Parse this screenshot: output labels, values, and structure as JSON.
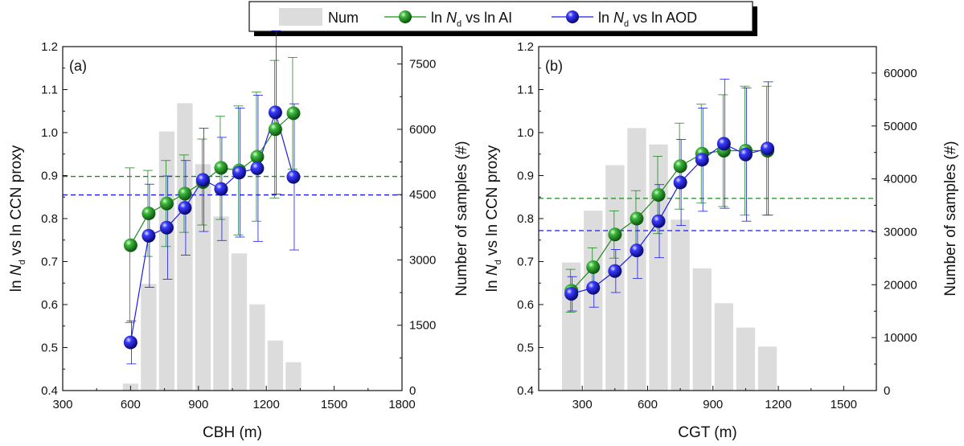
{
  "legend": {
    "items": [
      {
        "label": "Num",
        "kind": "bar"
      },
      {
        "label_main": "ln ",
        "label_italic": "N",
        "label_sub": "d",
        "label_tail": " vs ln AI",
        "color": "#1f8a1f",
        "kind": "line"
      },
      {
        "label_main": "ln ",
        "label_italic": "N",
        "label_sub": "d",
        "label_tail": " vs ln AOD",
        "color": "#1a1aee",
        "kind": "line"
      }
    ]
  },
  "colors": {
    "green": "#1f8a1f",
    "blue": "#1a1aee",
    "bars": "#dcdcdc",
    "green_dash": "#1f8a1f",
    "blue_dash": "#1a1aee"
  },
  "chart_data": [
    {
      "type": "bar+line",
      "panel_label": "(a)",
      "xlabel": "CBH (m)",
      "ylabel_left": {
        "pre": "ln ",
        "italic": "N",
        "sub": "d",
        "post": " vs ln CCN proxy"
      },
      "ylabel_right": "Number of samples (#)",
      "xlim": [
        300,
        1800
      ],
      "ylim_left": [
        0.4,
        1.2
      ],
      "ylim_right": [
        0,
        7900
      ],
      "xticks": [
        300,
        600,
        900,
        1200,
        1500,
        1800
      ],
      "yticks_left": [
        "0.4",
        "0.5",
        "0.6",
        "0.7",
        "0.8",
        "0.9",
        "1.0",
        "1.1",
        "1.2"
      ],
      "yticks_right": [
        0,
        1500,
        3000,
        4500,
        6000,
        7500
      ],
      "bars": {
        "name": "Num",
        "x": [
          600,
          680,
          760,
          840,
          920,
          1000,
          1080,
          1160,
          1240,
          1320
        ],
        "values": [
          160,
          2450,
          5950,
          6600,
          5200,
          4000,
          3150,
          1980,
          1150,
          650
        ]
      },
      "series": [
        {
          "name": "ln Nd vs ln AI",
          "color": "#1f8a1f",
          "x": [
            600,
            680,
            760,
            840,
            920,
            1000,
            1080,
            1160,
            1240,
            1320
          ],
          "y": [
            0.738,
            0.812,
            0.835,
            0.858,
            0.885,
            0.918,
            0.912,
            0.944,
            1.008,
            1.045
          ],
          "err": [
            0.18,
            0.1,
            0.1,
            0.09,
            0.1,
            0.12,
            0.15,
            0.15,
            0.16,
            0.13
          ],
          "mean": 0.898
        },
        {
          "name": "ln Nd vs ln AOD",
          "color": "#1a1aee",
          "x": [
            600,
            680,
            760,
            840,
            920,
            1000,
            1080,
            1160,
            1240,
            1320
          ],
          "y": [
            0.512,
            0.76,
            0.779,
            0.825,
            0.89,
            0.869,
            0.907,
            0.917,
            1.047,
            0.897
          ],
          "err": [
            0.05,
            0.12,
            0.12,
            0.11,
            0.12,
            0.12,
            0.15,
            0.17,
            0.19,
            0.17
          ],
          "mean": 0.855
        }
      ]
    },
    {
      "type": "bar+line",
      "panel_label": "(b)",
      "xlabel": "CGT (m)",
      "ylabel_left": {
        "pre": "ln ",
        "italic": "N",
        "sub": "d",
        "post": " vs ln CCN proxy"
      },
      "ylabel_right": "Number of samples (#)",
      "xlim": [
        100,
        1650
      ],
      "ylim_left": [
        0.4,
        1.2
      ],
      "ylim_right": [
        0,
        65000
      ],
      "xticks": [
        300,
        600,
        900,
        1200,
        1500
      ],
      "yticks_left": [
        "0.4",
        "0.5",
        "0.6",
        "0.7",
        "0.8",
        "0.9",
        "1.0",
        "1.1",
        "1.2"
      ],
      "yticks_right": [
        0,
        10000,
        20000,
        30000,
        40000,
        50000,
        60000
      ],
      "bars": {
        "name": "Num",
        "x": [
          250,
          350,
          450,
          550,
          650,
          750,
          850,
          950,
          1050,
          1150
        ],
        "values": [
          24200,
          34000,
          42600,
          49600,
          46500,
          32300,
          23100,
          16500,
          11900,
          8300
        ]
      },
      "series": [
        {
          "name": "ln Nd vs ln AI",
          "color": "#1f8a1f",
          "x": [
            250,
            350,
            450,
            550,
            650,
            750,
            850,
            950,
            1050,
            1150
          ],
          "y": [
            0.632,
            0.687,
            0.763,
            0.8,
            0.855,
            0.922,
            0.951,
            0.958,
            0.958,
            0.958
          ],
          "err": [
            0.05,
            0.045,
            0.055,
            0.065,
            0.09,
            0.1,
            0.115,
            0.13,
            0.15,
            0.15
          ],
          "mean": 0.847
        },
        {
          "name": "ln Nd vs ln AOD",
          "color": "#1a1aee",
          "x": [
            250,
            350,
            450,
            550,
            650,
            750,
            850,
            950,
            1050,
            1150
          ],
          "y": [
            0.625,
            0.639,
            0.678,
            0.726,
            0.794,
            0.884,
            0.937,
            0.974,
            0.949,
            0.963
          ],
          "err": [
            0.04,
            0.045,
            0.05,
            0.065,
            0.085,
            0.1,
            0.12,
            0.15,
            0.155,
            0.155
          ],
          "mean": 0.772
        }
      ]
    }
  ]
}
